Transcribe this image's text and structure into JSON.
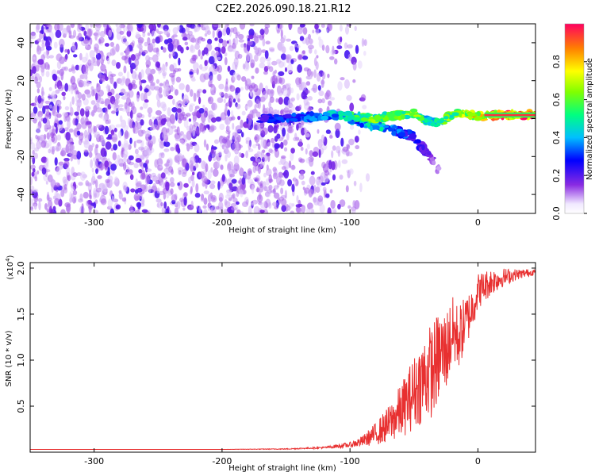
{
  "title": "C2E2.2026.090.18.21.R12",
  "chart_data": [
    {
      "type": "heatmap",
      "name": "spectrogram",
      "xlabel": "Height of straight line (km)",
      "ylabel": "Frequency (Hz)",
      "xlim": [
        -350,
        45
      ],
      "ylim": [
        -50,
        50
      ],
      "xticks": [
        -300,
        -200,
        -100,
        0
      ],
      "yticks": [
        -40,
        -20,
        0,
        20,
        40
      ],
      "xtick_labels": [
        "-300",
        "-200",
        "-100",
        "0"
      ],
      "ytick_labels": [
        "-40",
        "-20",
        "0",
        "20",
        "40"
      ],
      "noise_region_km": [
        -350,
        -110
      ],
      "signal_track": {
        "x": [
          -170,
          -150,
          -130,
          -110,
          -95,
          -80,
          -70,
          -60,
          -50,
          -40,
          -30,
          -20,
          -10,
          0,
          20,
          45
        ],
        "y": [
          0,
          0,
          1,
          2,
          1,
          0,
          1,
          2,
          3,
          -1,
          -2,
          2,
          3,
          1,
          2,
          2
        ],
        "amplitude": [
          0.25,
          0.3,
          0.35,
          0.45,
          0.55,
          0.6,
          0.55,
          0.6,
          0.65,
          0.5,
          0.55,
          0.65,
          0.7,
          0.8,
          0.9,
          0.9
        ]
      },
      "secondary_branch": {
        "x": [
          -100,
          -85,
          -70,
          -60,
          -50,
          -40,
          -30
        ],
        "y": [
          0,
          -3,
          -5,
          -7,
          -10,
          -18,
          -28
        ],
        "amplitude": [
          0.4,
          0.5,
          0.45,
          0.35,
          0.3,
          0.2,
          0.1
        ]
      },
      "colorbar": {
        "label": "Normalized spectral amplitude",
        "range": [
          0,
          1
        ],
        "ticks": [
          0.0,
          0.2,
          0.4,
          0.6,
          0.8
        ],
        "tick_labels": [
          "0.0",
          "0.2",
          "0.4",
          "0.6",
          "0.8"
        ]
      }
    },
    {
      "type": "line",
      "name": "snr",
      "xlabel": "Height of straight line (km)",
      "ylabel": "SNR (10 * v/v)",
      "multiplier_label": "(x10",
      "multiplier_exp": "4",
      "multiplier_close": ")",
      "xlim": [
        -350,
        45
      ],
      "ylim": [
        0,
        20600
      ],
      "xticks": [
        -300,
        -200,
        -100,
        0
      ],
      "yticks": [
        5000,
        10000,
        15000,
        20000
      ],
      "xtick_labels": [
        "-300",
        "-200",
        "-100",
        "0"
      ],
      "ytick_labels": [
        "0.5",
        "1.0",
        "1.5",
        "2.0"
      ],
      "color": "#e83030",
      "series": [
        {
          "name": "SNR",
          "x": [
            -350,
            -300,
            -250,
            -200,
            -150,
            -120,
            -100,
            -90,
            -80,
            -70,
            -60,
            -50,
            -40,
            -35,
            -30,
            -25,
            -20,
            -15,
            -10,
            -5,
            0,
            10,
            20,
            30,
            40,
            45
          ],
          "y": [
            300,
            300,
            300,
            300,
            350,
            500,
            800,
            1200,
            2000,
            3000,
            4500,
            6500,
            8500,
            9000,
            10500,
            11000,
            13000,
            12500,
            14000,
            15500,
            17500,
            18500,
            19000,
            19300,
            19500,
            19600
          ],
          "noise_amplitude": [
            0,
            0,
            0,
            0,
            50,
            100,
            300,
            600,
            1200,
            2000,
            3000,
            4000,
            5000,
            5200,
            5000,
            4500,
            4000,
            3500,
            3000,
            2500,
            2000,
            1500,
            1000,
            600,
            400,
            300
          ]
        }
      ]
    }
  ]
}
